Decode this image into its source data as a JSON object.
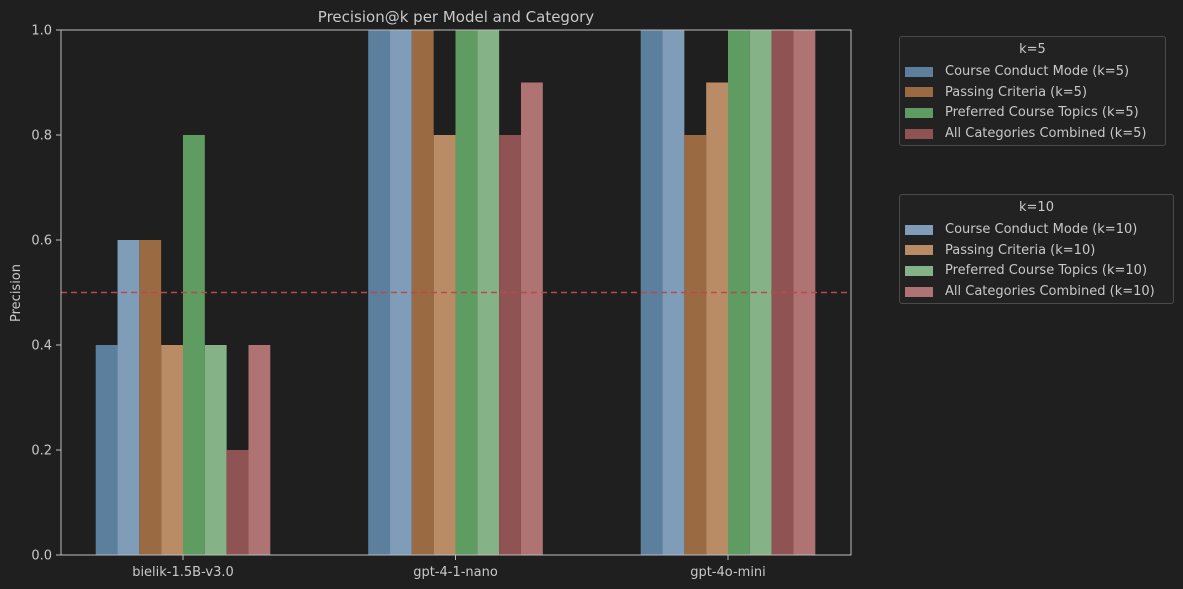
{
  "chart_data": {
    "type": "bar",
    "title": "Precision@k per Model and Category",
    "xlabel": "",
    "ylabel": "Precision",
    "ylim": [
      0,
      1.0
    ],
    "yticks": [
      "0.0",
      "0.2",
      "0.4",
      "0.6",
      "0.8",
      "1.0"
    ],
    "categories": [
      "bielik-1.5B-v3.0",
      "gpt-4-1-nano",
      "gpt-4o-mini"
    ],
    "reference_line": {
      "y": 0.5,
      "style": "dashed",
      "color": "#b84a4a"
    },
    "grid": false,
    "series": [
      {
        "name": "Course Conduct Mode (k=5)",
        "group": "k=5",
        "color": "#5c7f9e",
        "values": [
          0.4,
          1.0,
          1.0
        ]
      },
      {
        "name": "Course Conduct Mode (k=10)",
        "group": "k=10",
        "color": "#7f9cb8",
        "values": [
          0.6,
          1.0,
          1.0
        ]
      },
      {
        "name": "Passing Criteria (k=5)",
        "group": "k=5",
        "color": "#9a6a43",
        "values": [
          0.6,
          1.0,
          0.8
        ]
      },
      {
        "name": "Passing Criteria (k=10)",
        "group": "k=10",
        "color": "#b98c65",
        "values": [
          0.4,
          0.8,
          0.9
        ]
      },
      {
        "name": "Preferred Course Topics (k=5)",
        "group": "k=5",
        "color": "#5f9c62",
        "values": [
          0.8,
          1.0,
          1.0
        ]
      },
      {
        "name": "Preferred Course Topics (k=10)",
        "group": "k=10",
        "color": "#85b286",
        "values": [
          0.4,
          1.0,
          1.0
        ]
      },
      {
        "name": "All Categories Combined (k=5)",
        "group": "k=5",
        "color": "#8f5353",
        "values": [
          0.2,
          0.8,
          1.0
        ]
      },
      {
        "name": "All Categories Combined (k=10)",
        "group": "k=10",
        "color": "#b07374",
        "values": [
          0.4,
          0.9,
          1.0
        ]
      }
    ],
    "legends": [
      {
        "title": "k=5",
        "position": "top-right outside",
        "items": [
          "Course Conduct Mode (k=5)",
          "Passing Criteria (k=5)",
          "Preferred Course Topics (k=5)",
          "All Categories Combined (k=5)"
        ]
      },
      {
        "title": "k=10",
        "position": "right outside",
        "items": [
          "Course Conduct Mode (k=10)",
          "Passing Criteria (k=10)",
          "Preferred Course Topics (k=10)",
          "All Categories Combined (k=10)"
        ]
      }
    ]
  }
}
